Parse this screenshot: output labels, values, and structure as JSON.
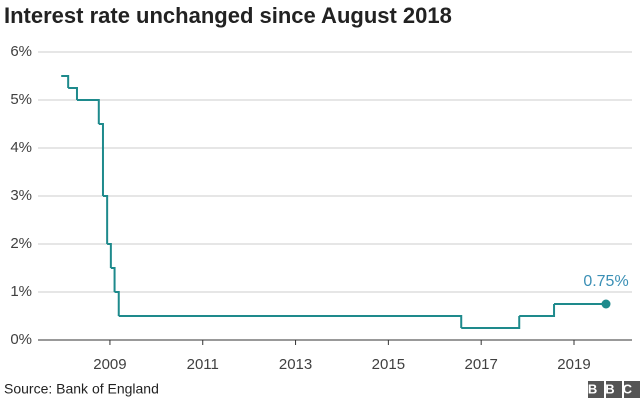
{
  "chart_data": {
    "type": "step",
    "title": "Interest rate unchanged since August 2018",
    "source": "Source: Bank of England",
    "logo": "BBC",
    "x": [
      2007.95,
      2008.1,
      2008.29,
      2008.76,
      2008.85,
      2008.94,
      2009.02,
      2009.1,
      2009.19,
      2016.57,
      2017.82,
      2018.57,
      2019.69
    ],
    "series": [
      {
        "color": "#1e8a8c",
        "values": [
          5.5,
          5.25,
          5.0,
          4.5,
          3.0,
          2.0,
          1.5,
          1.0,
          0.5,
          0.25,
          0.5,
          0.75,
          0.75
        ],
        "value_labels": [
          null,
          null,
          null,
          null,
          null,
          null,
          null,
          null,
          null,
          null,
          null,
          null,
          "0.75%"
        ],
        "label_color": "#3a8fb5"
      }
    ],
    "xlim": [
      2007.45,
      2020.25
    ],
    "xticks": [
      2009,
      2011,
      2013,
      2015,
      2017,
      2019
    ],
    "ylim": [
      0,
      6
    ],
    "yticks": [
      {
        "value": 0,
        "label": "0%"
      },
      {
        "value": 1,
        "label": "1%"
      },
      {
        "value": 2,
        "label": "2%"
      },
      {
        "value": 3,
        "label": "3%"
      },
      {
        "value": 4,
        "label": "4%"
      },
      {
        "value": 5,
        "label": "5%"
      },
      {
        "value": 6,
        "label": "6%"
      }
    ],
    "grid": true
  }
}
